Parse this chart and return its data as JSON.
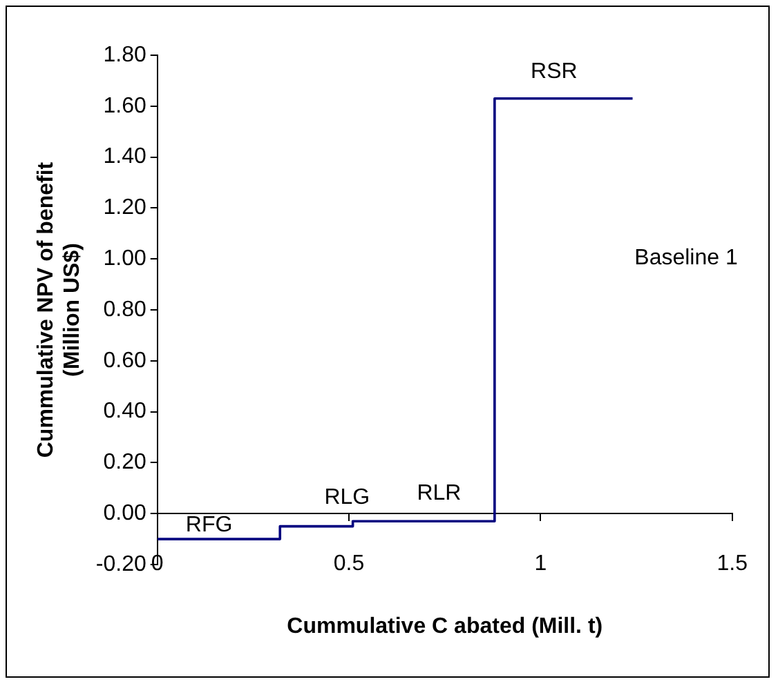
{
  "chart_data": {
    "type": "step",
    "xlabel": "Cummulative C abated (Mill. t)",
    "ylabel": "Cummulative NPV of benefit\n(Million US$)",
    "x": [
      0,
      0.32,
      0.51,
      0.88,
      1.24
    ],
    "series": [
      {
        "color": "#000080",
        "values": [
          -0.1,
          -0.05,
          -0.03,
          1.63,
          1.63
        ]
      }
    ],
    "xlim": [
      0,
      1.5
    ],
    "xticks": [
      0,
      0.5,
      1,
      1.5
    ],
    "ylim": [
      -0.2,
      1.8
    ],
    "yticks": [
      {
        "value": -0.2,
        "label": "-0.20"
      },
      {
        "value": 0,
        "label": "0.00"
      },
      {
        "value": 0.2,
        "label": "0.20"
      },
      {
        "value": 0.4,
        "label": "0.40"
      },
      {
        "value": 0.6,
        "label": "0.60"
      },
      {
        "value": 0.8,
        "label": "0.80"
      },
      {
        "value": 1,
        "label": "1.00"
      },
      {
        "value": 1.2,
        "label": "1.20"
      },
      {
        "value": 1.4,
        "label": "1.40"
      },
      {
        "value": 1.6,
        "label": "1.60"
      },
      {
        "value": 1.8,
        "label": "1.80"
      }
    ],
    "annotations": [
      "RFG",
      "RLG",
      "RLR",
      "RSR",
      "Baseline 1"
    ],
    "grid": false,
    "legend": false,
    "marker": "none",
    "line_style": "solid"
  }
}
